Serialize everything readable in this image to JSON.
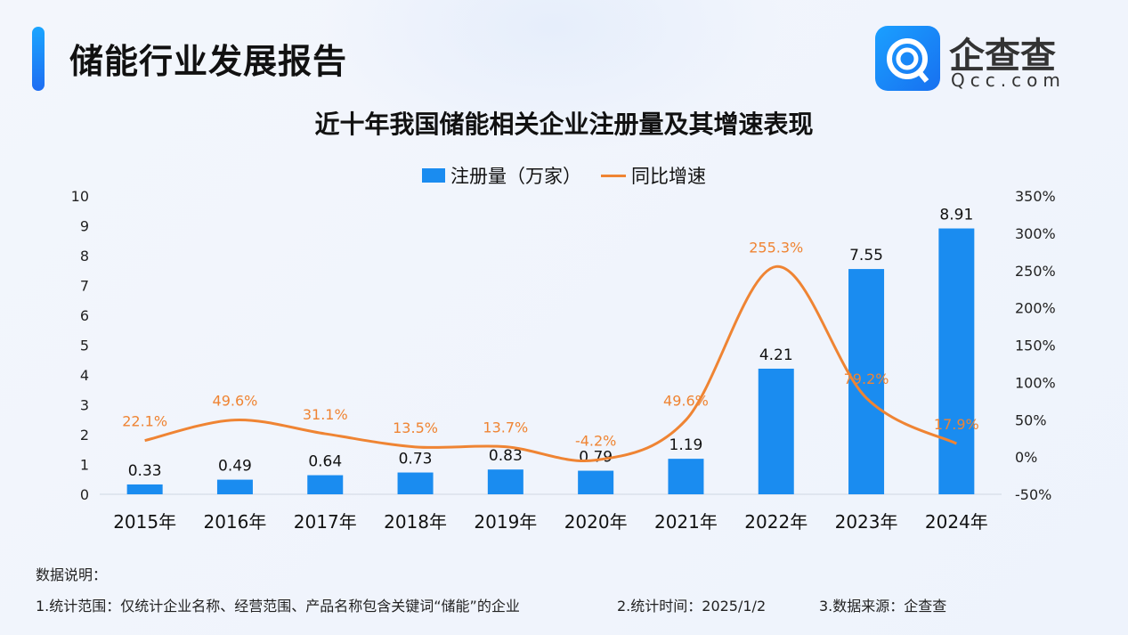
{
  "header": {
    "title": "储能行业发展报告",
    "logo_text": "企查查",
    "logo_sub": "Qcc.com"
  },
  "colors": {
    "bar": "#1a8cf0",
    "line": "#ef8433",
    "accent": "#1e6df2"
  },
  "chart_data": {
    "type": "bar+line",
    "title": "近十年我国储能相关企业注册量及其增速表现",
    "legend": [
      "注册量（万家）",
      "同比增速"
    ],
    "legend_position": "top",
    "categories": [
      "2015年",
      "2016年",
      "2017年",
      "2018年",
      "2019年",
      "2020年",
      "2021年",
      "2022年",
      "2023年",
      "2024年"
    ],
    "series": [
      {
        "name": "注册量（万家）",
        "type": "bar",
        "axis": "left",
        "values": [
          0.33,
          0.49,
          0.64,
          0.73,
          0.83,
          0.79,
          1.19,
          4.21,
          7.55,
          8.91
        ],
        "labels": [
          "0.33",
          "0.49",
          "0.64",
          "0.73",
          "0.83",
          "0.79",
          "1.19",
          "4.21",
          "7.55",
          "8.91"
        ]
      },
      {
        "name": "同比增速",
        "type": "line",
        "axis": "right",
        "values": [
          22.1,
          49.6,
          31.1,
          13.5,
          13.7,
          -4.2,
          49.6,
          255.3,
          79.2,
          17.9
        ],
        "labels": [
          "22.1%",
          "49.6%",
          "31.1%",
          "13.5%",
          "13.7%",
          "-4.2%",
          "49.6%",
          "255.3%",
          "79.2%",
          "17.9%"
        ]
      }
    ],
    "ylim_left": [
      0,
      10
    ],
    "yticks_left": [
      "0",
      "1",
      "2",
      "3",
      "4",
      "5",
      "6",
      "7",
      "8",
      "9",
      "10"
    ],
    "ylim_right": [
      -50,
      350
    ],
    "yticks_right": [
      "-50%",
      "0%",
      "50%",
      "100%",
      "150%",
      "200%",
      "250%",
      "300%",
      "350%"
    ],
    "grid": false
  },
  "notes": {
    "heading": "数据说明：",
    "item1": "1.统计范围：仅统计企业名称、经营范围、产品名称包含关键词“储能”的企业",
    "item2": "2.统计时间：2025/1/2",
    "item3": "3.数据来源：企查查"
  }
}
